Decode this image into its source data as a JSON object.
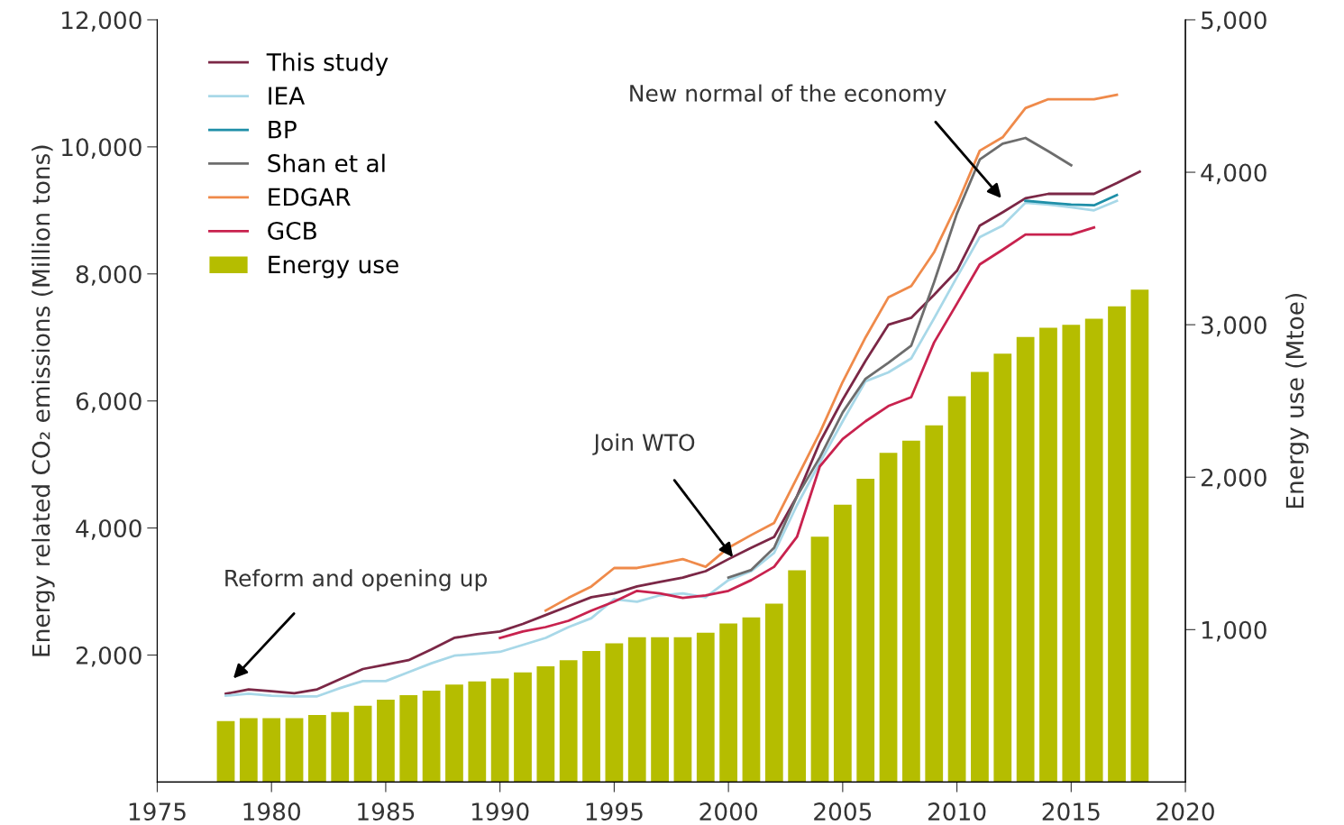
{
  "chart_data": {
    "type": "line",
    "ylabel": "Energy related CO₂ emissions (Million tons)",
    "y2label": "Energy use (Mtoe)",
    "xlim": [
      1975,
      2020
    ],
    "xticks": [
      1975,
      1980,
      1985,
      1990,
      1995,
      2000,
      2005,
      2010,
      2015,
      2020
    ],
    "ylim": [
      0,
      12000
    ],
    "yticks": [
      {
        "value": 2000,
        "label": "2,000"
      },
      {
        "value": 4000,
        "label": "4,000"
      },
      {
        "value": 6000,
        "label": "6,000"
      },
      {
        "value": 8000,
        "label": "8,000"
      },
      {
        "value": 10000,
        "label": "10,000"
      },
      {
        "value": 12000,
        "label": "12,000"
      }
    ],
    "y2lim": [
      0,
      5000
    ],
    "y2ticks": [
      {
        "value": 1000,
        "label": "1,000"
      },
      {
        "value": 2000,
        "label": "2,000"
      },
      {
        "value": 3000,
        "label": "3,000"
      },
      {
        "value": 4000,
        "label": "4,000"
      },
      {
        "value": 5000,
        "label": "5,000"
      }
    ],
    "grid": false,
    "legend": "top left",
    "series": [
      {
        "name": "This study",
        "color": "#7b2746",
        "x": [
          1978,
          1979,
          1980,
          1981,
          1982,
          1983,
          1984,
          1985,
          1986,
          1987,
          1988,
          1989,
          1990,
          1991,
          1992,
          1993,
          1994,
          1995,
          1996,
          1997,
          1998,
          1999,
          2000,
          2001,
          2002,
          2003,
          2004,
          2005,
          2006,
          2007,
          2008,
          2009,
          2010,
          2011,
          2012,
          2013,
          2014,
          2015,
          2016,
          2017,
          2018
        ],
        "values": [
          1390,
          1460,
          1430,
          1400,
          1460,
          1620,
          1780,
          1850,
          1920,
          2090,
          2270,
          2330,
          2370,
          2490,
          2630,
          2770,
          2910,
          2970,
          3080,
          3150,
          3220,
          3320,
          3510,
          3690,
          3860,
          4500,
          5350,
          6020,
          6630,
          7200,
          7310,
          7670,
          8050,
          8760,
          8970,
          9190,
          9260,
          9260,
          9260,
          9430,
          9610
        ]
      },
      {
        "name": "IEA",
        "color": "#a8d8e8",
        "x": [
          1978,
          1979,
          1980,
          1981,
          1982,
          1983,
          1984,
          1985,
          1986,
          1987,
          1988,
          1989,
          1990,
          1991,
          1992,
          1993,
          1994,
          1995,
          1996,
          1997,
          1998,
          1999,
          2000,
          2001,
          2002,
          2003,
          2004,
          2005,
          2006,
          2007,
          2008,
          2009,
          2010,
          2011,
          2012,
          2013,
          2014,
          2015,
          2016,
          2017
        ],
        "values": [
          1360,
          1390,
          1360,
          1350,
          1350,
          1480,
          1590,
          1590,
          1730,
          1870,
          1990,
          2020,
          2050,
          2160,
          2270,
          2440,
          2580,
          2880,
          2840,
          2940,
          2970,
          2910,
          3180,
          3320,
          3610,
          4360,
          5030,
          5680,
          6310,
          6450,
          6670,
          7300,
          7950,
          8580,
          8760,
          9120,
          9090,
          9050,
          9000,
          9150
        ]
      },
      {
        "name": "BP",
        "color": "#1f8fa8",
        "x": [
          2013,
          2014,
          2015,
          2016,
          2017
        ],
        "values": [
          9150,
          9120,
          9090,
          9080,
          9240
        ]
      },
      {
        "name": "Shan et al",
        "color": "#6d6d6d",
        "x": [
          2000,
          2001,
          2002,
          2003,
          2004,
          2005,
          2006,
          2007,
          2008,
          2009,
          2010,
          2011,
          2012,
          2013,
          2014,
          2015
        ],
        "values": [
          3220,
          3340,
          3690,
          4500,
          5110,
          5820,
          6350,
          6600,
          6870,
          7870,
          8950,
          9800,
          10050,
          10140,
          9930,
          9710
        ]
      },
      {
        "name": "EDGAR",
        "color": "#ef8a4a",
        "x": [
          1992,
          1993,
          1994,
          1995,
          1996,
          1997,
          1998,
          1999,
          2000,
          2001,
          2002,
          2003,
          2004,
          2005,
          2006,
          2007,
          2008,
          2009,
          2010,
          2011,
          2012,
          2013,
          2014,
          2015,
          2016,
          2017
        ],
        "values": [
          2700,
          2900,
          3080,
          3370,
          3370,
          3440,
          3510,
          3390,
          3690,
          3890,
          4080,
          4790,
          5500,
          6300,
          7000,
          7630,
          7810,
          8340,
          9090,
          9940,
          10150,
          10610,
          10750,
          10750,
          10750,
          10820
        ]
      },
      {
        "name": "GCB",
        "color": "#c8224e",
        "x": [
          1990,
          1991,
          1992,
          1993,
          1994,
          1995,
          1996,
          1997,
          1998,
          1999,
          2000,
          2001,
          2002,
          2003,
          2004,
          2005,
          2006,
          2007,
          2008,
          2009,
          2010,
          2011,
          2012,
          2013,
          2014,
          2015,
          2016
        ],
        "values": [
          2270,
          2370,
          2440,
          2540,
          2700,
          2840,
          3010,
          2970,
          2900,
          2940,
          3010,
          3180,
          3390,
          3860,
          4970,
          5400,
          5680,
          5920,
          6060,
          6920,
          7530,
          8150,
          8380,
          8620,
          8620,
          8620,
          8730
        ]
      },
      {
        "name": "Energy use",
        "type": "bar",
        "axis": "y2",
        "color": "#b5bd00",
        "x": [
          1978,
          1979,
          1980,
          1981,
          1982,
          1983,
          1984,
          1985,
          1986,
          1987,
          1988,
          1989,
          1990,
          1991,
          1992,
          1993,
          1994,
          1995,
          1996,
          1997,
          1998,
          1999,
          2000,
          2001,
          2002,
          2003,
          2004,
          2005,
          2006,
          2007,
          2008,
          2009,
          2010,
          2011,
          2012,
          2013,
          2014,
          2015,
          2016,
          2017,
          2018
        ],
        "values": [
          400,
          420,
          420,
          420,
          440,
          460,
          500,
          540,
          570,
          600,
          640,
          660,
          680,
          720,
          760,
          800,
          860,
          910,
          950,
          950,
          950,
          980,
          1040,
          1080,
          1170,
          1390,
          1610,
          1820,
          1990,
          2160,
          2240,
          2340,
          2530,
          2690,
          2810,
          2920,
          2980,
          3000,
          3040,
          3120,
          3230
        ]
      }
    ],
    "annotations": [
      "Reform and opening up",
      {
        "text": "Join WTO",
        "x": 2000.2,
        "y": 3540
      },
      "New normal of the economy"
    ]
  }
}
